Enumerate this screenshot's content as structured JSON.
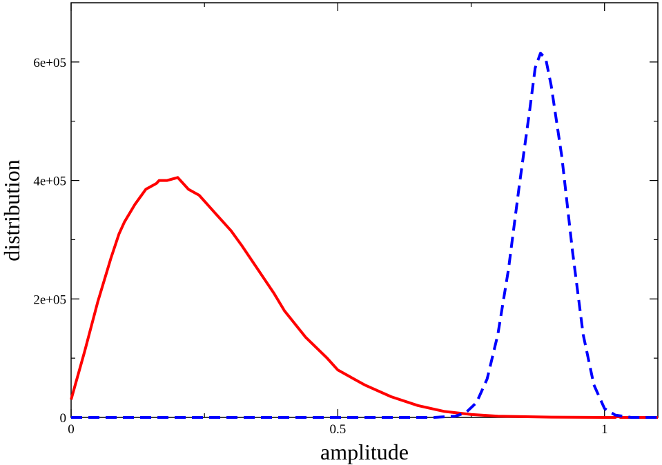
{
  "chart_data": {
    "type": "line",
    "title": "",
    "xlabel": "amplitude",
    "ylabel": "distribution",
    "xlim": [
      0,
      1.1
    ],
    "ylim": [
      0,
      700000
    ],
    "grid": false,
    "x_ticks": [
      0,
      0.5,
      1
    ],
    "x_tick_labels": [
      "0",
      "0.5",
      "1"
    ],
    "y_ticks": [
      0,
      200000,
      400000,
      600000
    ],
    "y_tick_labels": [
      "0",
      "2e+05",
      "4e+05",
      "6e+05"
    ],
    "series": [
      {
        "style": "solid",
        "color": "#ff0000",
        "points": [
          [
            0.0,
            30000
          ],
          [
            0.025,
            110000
          ],
          [
            0.05,
            195000
          ],
          [
            0.075,
            270000
          ],
          [
            0.09,
            310000
          ],
          [
            0.1,
            330000
          ],
          [
            0.12,
            360000
          ],
          [
            0.14,
            385000
          ],
          [
            0.16,
            395000
          ],
          [
            0.165,
            400000
          ],
          [
            0.18,
            400000
          ],
          [
            0.2,
            405000
          ],
          [
            0.22,
            385000
          ],
          [
            0.24,
            375000
          ],
          [
            0.26,
            355000
          ],
          [
            0.27,
            345000
          ],
          [
            0.3,
            315000
          ],
          [
            0.32,
            290000
          ],
          [
            0.35,
            250000
          ],
          [
            0.38,
            210000
          ],
          [
            0.4,
            180000
          ],
          [
            0.44,
            135000
          ],
          [
            0.48,
            100000
          ],
          [
            0.5,
            80000
          ],
          [
            0.55,
            55000
          ],
          [
            0.6,
            35000
          ],
          [
            0.65,
            20000
          ],
          [
            0.7,
            10000
          ],
          [
            0.75,
            5000
          ],
          [
            0.8,
            2000
          ],
          [
            0.9,
            500
          ],
          [
            1.0,
            0
          ],
          [
            1.02,
            0
          ],
          [
            1.025,
            2000
          ],
          [
            1.03,
            0
          ],
          [
            1.1,
            0
          ]
        ]
      },
      {
        "style": "dashed",
        "color": "#0000ff",
        "points": [
          [
            0.0,
            0
          ],
          [
            0.5,
            0
          ],
          [
            0.68,
            0
          ],
          [
            0.72,
            2000
          ],
          [
            0.74,
            8000
          ],
          [
            0.76,
            25000
          ],
          [
            0.78,
            65000
          ],
          [
            0.8,
            140000
          ],
          [
            0.82,
            250000
          ],
          [
            0.84,
            390000
          ],
          [
            0.86,
            520000
          ],
          [
            0.87,
            590000
          ],
          [
            0.88,
            615000
          ],
          [
            0.89,
            605000
          ],
          [
            0.9,
            560000
          ],
          [
            0.92,
            440000
          ],
          [
            0.94,
            280000
          ],
          [
            0.96,
            140000
          ],
          [
            0.98,
            55000
          ],
          [
            1.0,
            15000
          ],
          [
            1.02,
            4000
          ],
          [
            1.05,
            0
          ],
          [
            1.1,
            0
          ]
        ]
      }
    ]
  }
}
